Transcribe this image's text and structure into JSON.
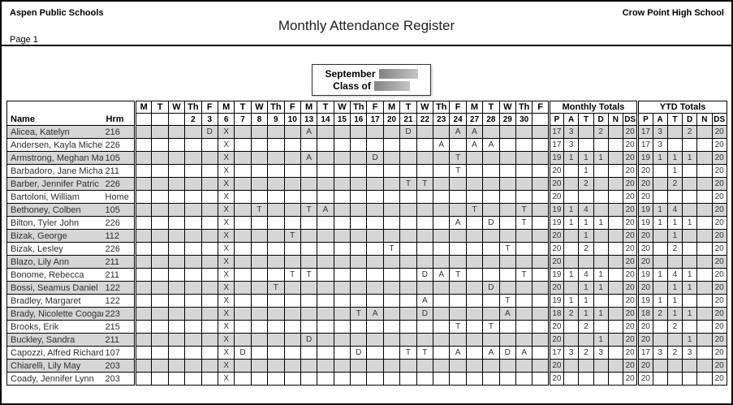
{
  "page": {
    "district": "Aspen Public Schools",
    "school": "Crow Point High School",
    "title": "Monthly Attendance Register",
    "page_label": "Page 1"
  },
  "month_box": {
    "month_label": "September",
    "class_label": "Class of"
  },
  "colors": {
    "row_shade": "#d6d6d6",
    "border": "#000000",
    "redaction_gray": "#9a9a9a"
  },
  "table": {
    "name_header": "Name",
    "hrm_header": "Hrm",
    "monthly_totals_header": "Monthly Totals",
    "ytd_totals_header": "YTD Totals",
    "totals_columns": [
      "P",
      "A",
      "T",
      "D",
      "N",
      "DS"
    ],
    "day_dows": [
      "M",
      "T",
      "W",
      "Th",
      "F",
      "M",
      "T",
      "W",
      "Th",
      "F",
      "M",
      "T",
      "W",
      "Th",
      "F",
      "M",
      "T",
      "W",
      "Th",
      "F",
      "M",
      "T",
      "W",
      "Th",
      "F"
    ],
    "day_dates": [
      "",
      "",
      "",
      "2",
      "3",
      "6",
      "7",
      "8",
      "9",
      "10",
      "13",
      "14",
      "15",
      "16",
      "17",
      "20",
      "21",
      "22",
      "23",
      "24",
      "27",
      "28",
      "29",
      "30",
      ""
    ],
    "rows": [
      {
        "name": "Alicea, Katelyn",
        "hrm": "216",
        "marks": {
          "4": "D",
          "5": "X",
          "10": "A",
          "16": "D",
          "19": "A",
          "20": "A"
        },
        "monthly": [
          "17",
          "3",
          "",
          "2",
          "",
          "20"
        ],
        "ytd": [
          "17",
          "3",
          "",
          "2",
          "",
          "20"
        ]
      },
      {
        "name": "Andersen, Kayla Michell",
        "hrm": "226",
        "marks": {
          "5": "X",
          "18": "A",
          "20": "A",
          "21": "A"
        },
        "monthly": [
          "17",
          "3",
          "",
          "",
          "",
          "20"
        ],
        "ytd": [
          "17",
          "3",
          "",
          "",
          "",
          "20"
        ]
      },
      {
        "name": "Armstrong, Meghan Mary",
        "hrm": "105",
        "marks": {
          "5": "X",
          "10": "A",
          "14": "D",
          "19": "T"
        },
        "monthly": [
          "19",
          "1",
          "1",
          "1",
          "",
          "20"
        ],
        "ytd": [
          "19",
          "1",
          "1",
          "1",
          "",
          "20"
        ]
      },
      {
        "name": "Barbadoro, Jane Michael",
        "hrm": "211",
        "marks": {
          "5": "X",
          "19": "T"
        },
        "monthly": [
          "20",
          "",
          "1",
          "",
          "",
          "20"
        ],
        "ytd": [
          "20",
          "",
          "1",
          "",
          "",
          "20"
        ]
      },
      {
        "name": "Barber, Jennifer Patric",
        "hrm": "226",
        "marks": {
          "5": "X",
          "16": "T",
          "17": "T"
        },
        "monthly": [
          "20",
          "",
          "2",
          "",
          "",
          "20"
        ],
        "ytd": [
          "20",
          "",
          "2",
          "",
          "",
          "20"
        ]
      },
      {
        "name": "Bartoloni, William",
        "hrm": "Home",
        "marks": {
          "5": "X"
        },
        "monthly": [
          "20",
          "",
          "",
          "",
          "",
          "20"
        ],
        "ytd": [
          "20",
          "",
          "",
          "",
          "",
          "20"
        ]
      },
      {
        "name": "Bethoney, Colben",
        "hrm": "105",
        "marks": {
          "5": "X",
          "7": "T",
          "10": "T",
          "11": "A",
          "20": "T",
          "23": "T"
        },
        "monthly": [
          "19",
          "1",
          "4",
          "",
          "",
          "20"
        ],
        "ytd": [
          "19",
          "1",
          "4",
          "",
          "",
          "20"
        ]
      },
      {
        "name": "Bilton, Tyler John",
        "hrm": "226",
        "marks": {
          "5": "X",
          "19": "A",
          "21": "D",
          "23": "T"
        },
        "monthly": [
          "19",
          "1",
          "1",
          "1",
          "",
          "20"
        ],
        "ytd": [
          "19",
          "1",
          "1",
          "1",
          "",
          "20"
        ]
      },
      {
        "name": "Bizak, George",
        "hrm": "112",
        "marks": {
          "5": "X",
          "9": "T"
        },
        "monthly": [
          "20",
          "",
          "1",
          "",
          "",
          "20"
        ],
        "ytd": [
          "20",
          "",
          "1",
          "",
          "",
          "20"
        ]
      },
      {
        "name": "Bizak, Lesley",
        "hrm": "226",
        "marks": {
          "5": "X",
          "15": "T",
          "22": "T"
        },
        "monthly": [
          "20",
          "",
          "2",
          "",
          "",
          "20"
        ],
        "ytd": [
          "20",
          "",
          "2",
          "",
          "",
          "20"
        ]
      },
      {
        "name": "Blazo, Lily Ann",
        "hrm": "211",
        "marks": {
          "5": "X"
        },
        "monthly": [
          "20",
          "",
          "",
          "",
          "",
          "20"
        ],
        "ytd": [
          "20",
          "",
          "",
          "",
          "",
          "20"
        ]
      },
      {
        "name": "Bonome, Rebecca",
        "hrm": "211",
        "marks": {
          "5": "X",
          "9": "T",
          "10": "T",
          "17": "D",
          "18": "A",
          "19": "T",
          "23": "T"
        },
        "monthly": [
          "19",
          "1",
          "4",
          "1",
          "",
          "20"
        ],
        "ytd": [
          "19",
          "1",
          "4",
          "1",
          "",
          "20"
        ]
      },
      {
        "name": "Bossi, Seamus Daniel",
        "hrm": "122",
        "marks": {
          "5": "X",
          "8": "T",
          "21": "D"
        },
        "monthly": [
          "20",
          "",
          "1",
          "1",
          "",
          "20"
        ],
        "ytd": [
          "20",
          "",
          "1",
          "1",
          "",
          "20"
        ]
      },
      {
        "name": "Bradley, Margaret",
        "hrm": "122",
        "marks": {
          "5": "X",
          "17": "A",
          "22": "T"
        },
        "monthly": [
          "19",
          "1",
          "1",
          "",
          "",
          "20"
        ],
        "ytd": [
          "19",
          "1",
          "1",
          "",
          "",
          "20"
        ]
      },
      {
        "name": "Brady, Nicolette Coogan",
        "hrm": "223",
        "marks": {
          "5": "X",
          "13": "T",
          "14": "A",
          "17": "D",
          "22": "A"
        },
        "monthly": [
          "18",
          "2",
          "1",
          "1",
          "",
          "20"
        ],
        "ytd": [
          "18",
          "2",
          "1",
          "1",
          "",
          "20"
        ]
      },
      {
        "name": "Brooks, Erik",
        "hrm": "215",
        "marks": {
          "5": "X",
          "19": "T",
          "21": "T"
        },
        "monthly": [
          "20",
          "",
          "2",
          "",
          "",
          "20"
        ],
        "ytd": [
          "20",
          "",
          "2",
          "",
          "",
          "20"
        ]
      },
      {
        "name": "Buckley, Sandra",
        "hrm": "211",
        "marks": {
          "5": "X",
          "10": "D"
        },
        "monthly": [
          "20",
          "",
          "",
          "1",
          "",
          "20"
        ],
        "ytd": [
          "20",
          "",
          "",
          "1",
          "",
          "20"
        ]
      },
      {
        "name": "Capozzi, Alfred Richard",
        "hrm": "107",
        "marks": {
          "5": "X",
          "6": "D",
          "13": "D",
          "16": "T",
          "17": "T",
          "19": "A",
          "21": "A",
          "22": "D",
          "23": "A"
        },
        "monthly": [
          "17",
          "3",
          "2",
          "3",
          "",
          "20"
        ],
        "ytd": [
          "17",
          "3",
          "2",
          "3",
          "",
          "20"
        ]
      },
      {
        "name": "Chiarelli, Lily May",
        "hrm": "203",
        "marks": {
          "5": "X"
        },
        "monthly": [
          "20",
          "",
          "",
          "",
          "",
          "20"
        ],
        "ytd": [
          "20",
          "",
          "",
          "",
          "",
          "20"
        ]
      },
      {
        "name": "Coady, Jennifer Lynn",
        "hrm": "203",
        "marks": {
          "5": "X"
        },
        "monthly": [
          "20",
          "",
          "",
          "",
          "",
          "20"
        ],
        "ytd": [
          "20",
          "",
          "",
          "",
          "",
          "20"
        ]
      }
    ]
  }
}
